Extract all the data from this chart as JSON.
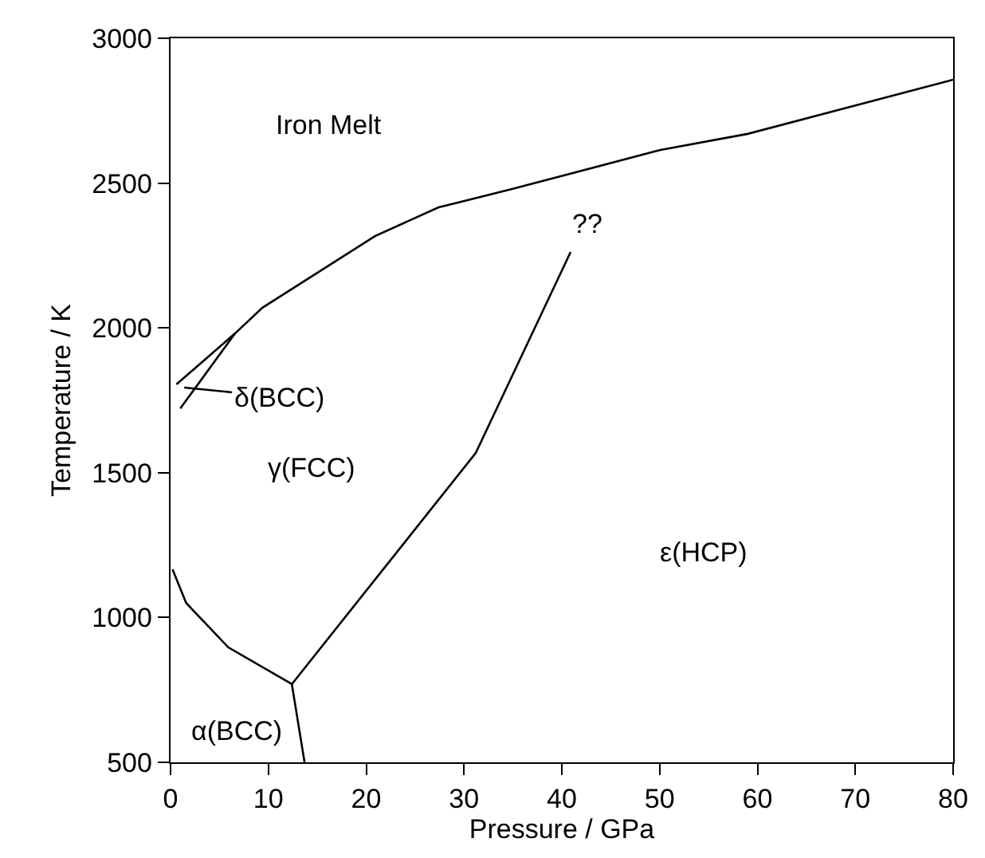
{
  "chart_data": {
    "type": "line",
    "xlabel": "Pressure / GPa",
    "ylabel": "Temperature / K",
    "xlim": [
      0,
      80
    ],
    "xticks": [
      0,
      10,
      20,
      30,
      40,
      50,
      60,
      70,
      80
    ],
    "ylim": [
      500,
      3000
    ],
    "yticks": [
      500,
      1000,
      1500,
      2000,
      2500,
      3000
    ],
    "marker": "none",
    "line_style": "solid",
    "series": [
      {
        "color": "#000000",
        "x": [
          0.6,
          6.6,
          9.4,
          20.9,
          27.4,
          35,
          50,
          59,
          80
        ],
        "values": [
          1805,
          1981,
          2070,
          2317,
          2416,
          2480,
          2614,
          2670,
          2857
        ]
      },
      {
        "color": "#000000",
        "x": [
          1.0,
          6.6
        ],
        "values": [
          1722,
          1981
        ]
      },
      {
        "color": "#000000",
        "x": [
          0.2,
          1.6,
          5.9,
          12.4
        ],
        "values": [
          1166,
          1050,
          897,
          770
        ]
      },
      {
        "color": "#000000",
        "x": [
          12.4,
          13.7
        ],
        "values": [
          770,
          500
        ]
      },
      {
        "color": "#000000",
        "x": [
          12.4,
          31.2,
          40.9
        ],
        "values": [
          770,
          1568,
          2262
        ]
      }
    ],
    "annotations": [
      "Iron Melt",
      {
        "text": "δ(BCC)",
        "x": 1.4,
        "y": 1794
      },
      "γ(FCC)",
      "α(BCC)",
      "ε(HCP)",
      {
        "text": "??",
        "x": 40.9,
        "y": 2262
      }
    ]
  }
}
